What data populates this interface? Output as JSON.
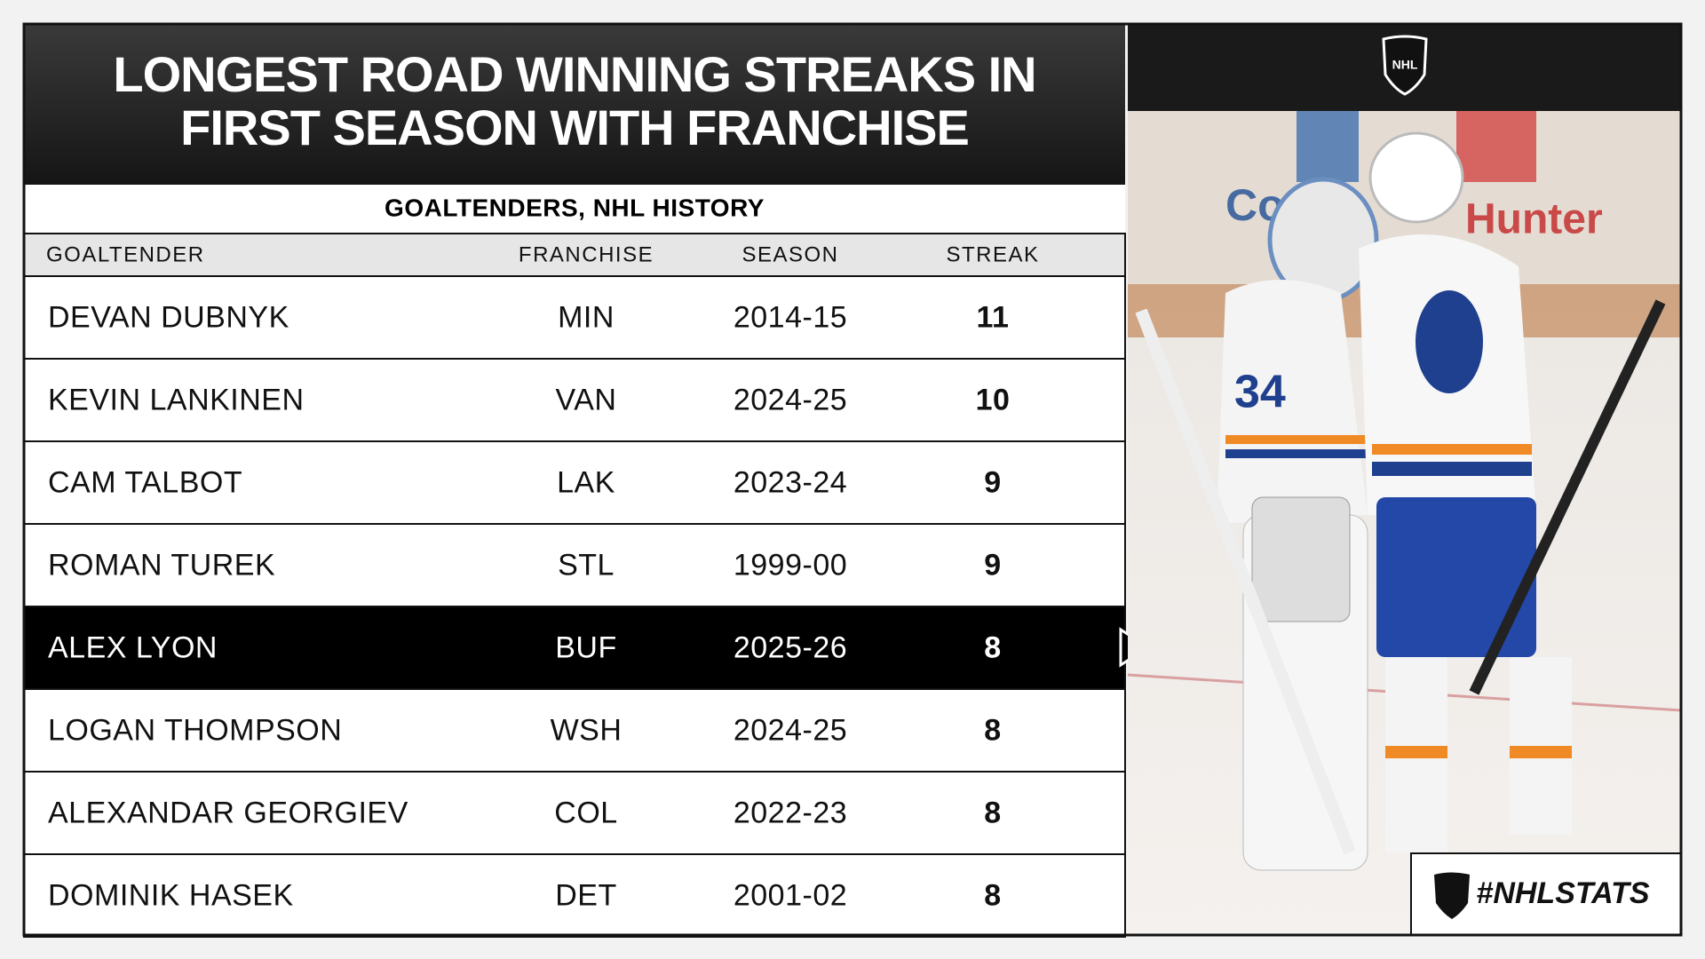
{
  "header": {
    "title_lines": [
      "LONGEST ROAD WINNING STREAKS IN",
      "FIRST SEASON WITH FRANCHISE"
    ],
    "subtitle": "GOALTENDERS, NHL HISTORY"
  },
  "table": {
    "columns": [
      "GOALTENDER",
      "FRANCHISE",
      "SEASON",
      "STREAK"
    ],
    "rows": [
      [
        "DEVAN DUBNYK",
        "MIN",
        "2014-15",
        11
      ],
      [
        "KEVIN LANKINEN",
        "VAN",
        "2024-25",
        10
      ],
      [
        "CAM TALBOT",
        "LAK",
        "2023-24",
        9
      ],
      [
        "ROMAN TUREK",
        "STL",
        "1999-00",
        9
      ],
      [
        "ALEX LYON",
        "BUF",
        "2025-26",
        8
      ],
      [
        "LOGAN THOMPSON",
        "WSH",
        "2024-25",
        8
      ],
      [
        "ALEXANDAR GEORGIEV",
        "COL",
        "2022-23",
        8
      ],
      [
        "DOMINIK HASEK",
        "DET",
        "2001-02",
        8
      ]
    ],
    "highlight_row": 4
  },
  "logo": "NHL",
  "badge": "#NHLSTATS"
}
